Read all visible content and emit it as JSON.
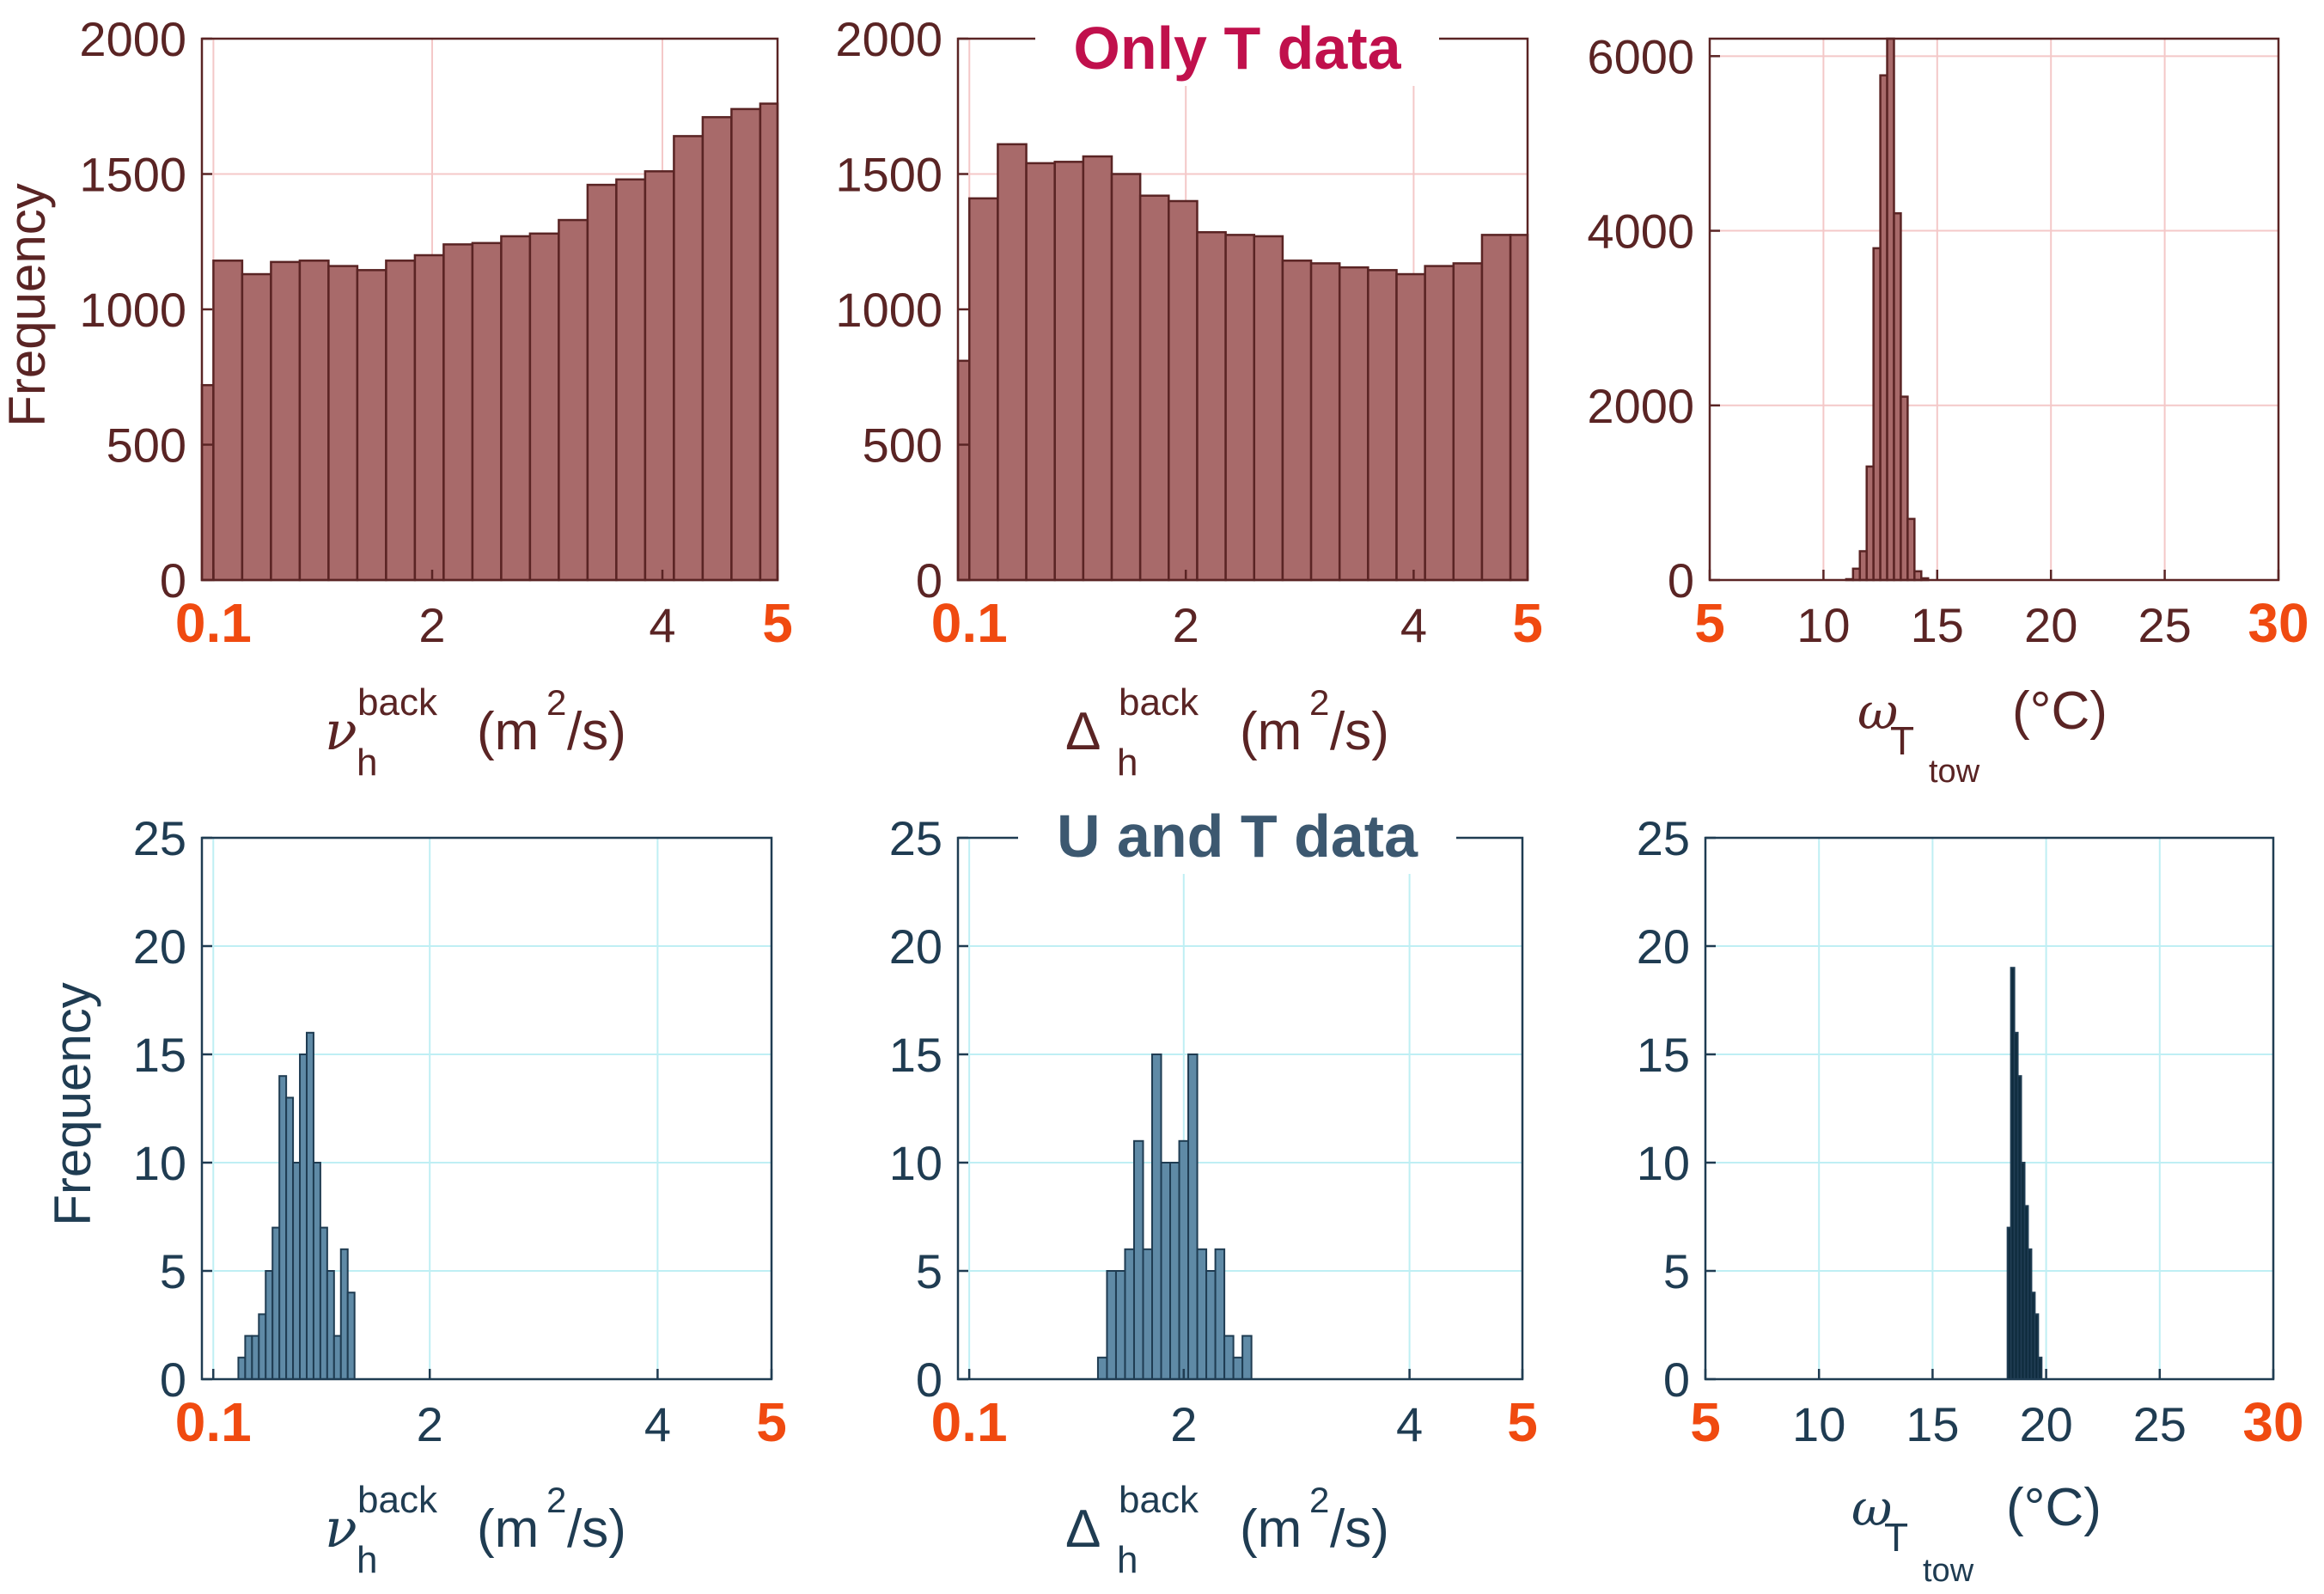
{
  "colors": {
    "top_bar": "#a86a6a",
    "top_dark": "#5a2424",
    "top_grid": "#f4c8c8",
    "top_title": "#c0104c",
    "bottom_bar": "#5f8aa6",
    "bottom_dark": "#1f3c52",
    "bottom_grid": "#bfeff4",
    "bottom_title": "#3c5870",
    "highlight_tick": "#f04a10",
    "omega_dark_bar": "#0d2a3c"
  },
  "titles": {
    "top": "Only T data",
    "bottom": "U and T data"
  },
  "ylabel": "Frequency",
  "xlabels": {
    "nu_main": "ν",
    "nu_sub": "h",
    "nu_sup": "back",
    "delta_main": "Δ",
    "delta_sub": "h",
    "delta_sup": "back",
    "unit_m2s_a": "(m",
    "unit_m2s_sup": "2",
    "unit_m2s_b": "/s)",
    "omega_main": "ω",
    "omega_sub": "T",
    "omega_subsub": "tow",
    "omega_unit": "(°C)"
  },
  "chart_data": [
    {
      "id": "top-nu",
      "type": "bar",
      "grid": true,
      "xlim": [
        0,
        5
      ],
      "ylim": [
        0,
        2000
      ],
      "yticks": [
        "0",
        "500",
        "1000",
        "1500",
        "2000"
      ],
      "xticks": [
        "0.1",
        "2",
        "4",
        "5"
      ],
      "bins": [
        [
          0,
          0.1,
          720
        ],
        [
          0.1,
          0.35,
          1180
        ],
        [
          0.35,
          0.6,
          1130
        ],
        [
          0.6,
          0.85,
          1175
        ],
        [
          0.85,
          1.1,
          1180
        ],
        [
          1.1,
          1.35,
          1160
        ],
        [
          1.35,
          1.6,
          1145
        ],
        [
          1.6,
          1.85,
          1180
        ],
        [
          1.85,
          2.1,
          1200
        ],
        [
          2.1,
          2.35,
          1240
        ],
        [
          2.35,
          2.6,
          1245
        ],
        [
          2.6,
          2.85,
          1270
        ],
        [
          2.85,
          3.1,
          1280
        ],
        [
          3.1,
          3.35,
          1330
        ],
        [
          3.35,
          3.6,
          1460
        ],
        [
          3.6,
          3.85,
          1480
        ],
        [
          3.85,
          4.1,
          1510
        ],
        [
          4.1,
          4.35,
          1640
        ],
        [
          4.35,
          4.6,
          1710
        ],
        [
          4.6,
          4.85,
          1740
        ],
        [
          4.85,
          5.0,
          1760
        ]
      ]
    },
    {
      "id": "top-delta",
      "type": "bar",
      "grid": true,
      "xlim": [
        0,
        5
      ],
      "ylim": [
        0,
        2000
      ],
      "yticks": [
        "0",
        "500",
        "1000",
        "1500",
        "2000"
      ],
      "xticks": [
        "0.1",
        "2",
        "4",
        "5"
      ],
      "bins": [
        [
          0,
          0.1,
          810
        ],
        [
          0.1,
          0.35,
          1410
        ],
        [
          0.35,
          0.6,
          1610
        ],
        [
          0.6,
          0.85,
          1540
        ],
        [
          0.85,
          1.1,
          1545
        ],
        [
          1.1,
          1.35,
          1565
        ],
        [
          1.35,
          1.6,
          1500
        ],
        [
          1.6,
          1.85,
          1420
        ],
        [
          1.85,
          2.1,
          1400
        ],
        [
          2.1,
          2.35,
          1285
        ],
        [
          2.35,
          2.6,
          1275
        ],
        [
          2.6,
          2.85,
          1270
        ],
        [
          2.85,
          3.1,
          1180
        ],
        [
          3.1,
          3.35,
          1170
        ],
        [
          3.35,
          3.6,
          1155
        ],
        [
          3.6,
          3.85,
          1145
        ],
        [
          3.85,
          4.1,
          1130
        ],
        [
          4.1,
          4.35,
          1160
        ],
        [
          4.35,
          4.6,
          1170
        ],
        [
          4.6,
          4.85,
          1275
        ],
        [
          4.85,
          5.0,
          1275
        ]
      ]
    },
    {
      "id": "top-omega",
      "type": "bar",
      "grid": true,
      "xlim": [
        5,
        30
      ],
      "ylim": [
        0,
        6200
      ],
      "yticks": [
        "0",
        "2000",
        "4000",
        "6000"
      ],
      "xticks": [
        "5",
        "10",
        "15",
        "20",
        "25",
        "30"
      ],
      "bins": [
        [
          11.0,
          11.3,
          10
        ],
        [
          11.3,
          11.6,
          130
        ],
        [
          11.6,
          11.9,
          330
        ],
        [
          11.9,
          12.2,
          1300
        ],
        [
          12.2,
          12.5,
          3800
        ],
        [
          12.5,
          12.8,
          5780
        ],
        [
          12.8,
          13.1,
          6200
        ],
        [
          13.1,
          13.4,
          4200
        ],
        [
          13.4,
          13.7,
          2100
        ],
        [
          13.7,
          14.0,
          700
        ],
        [
          14.0,
          14.3,
          100
        ],
        [
          14.3,
          14.6,
          20
        ]
      ]
    },
    {
      "id": "bottom-nu",
      "type": "bar",
      "grid": true,
      "xlim": [
        0,
        5
      ],
      "ylim": [
        0,
        25
      ],
      "yticks": [
        "0",
        "5",
        "10",
        "15",
        "20",
        "25"
      ],
      "xticks": [
        "0.1",
        "2",
        "4",
        "5"
      ],
      "bins": [
        [
          0.32,
          0.38,
          1
        ],
        [
          0.38,
          0.44,
          2
        ],
        [
          0.44,
          0.5,
          2
        ],
        [
          0.5,
          0.56,
          3
        ],
        [
          0.56,
          0.62,
          5
        ],
        [
          0.62,
          0.68,
          7
        ],
        [
          0.68,
          0.74,
          14
        ],
        [
          0.74,
          0.8,
          13
        ],
        [
          0.8,
          0.86,
          10
        ],
        [
          0.86,
          0.92,
          15
        ],
        [
          0.92,
          0.98,
          16
        ],
        [
          0.98,
          1.04,
          10
        ],
        [
          1.04,
          1.1,
          7
        ],
        [
          1.1,
          1.16,
          5
        ],
        [
          1.16,
          1.22,
          2
        ],
        [
          1.22,
          1.28,
          6
        ],
        [
          1.28,
          1.34,
          4
        ]
      ]
    },
    {
      "id": "bottom-delta",
      "type": "bar",
      "grid": true,
      "xlim": [
        0,
        5
      ],
      "ylim": [
        0,
        25
      ],
      "yticks": [
        "0",
        "5",
        "10",
        "15",
        "20",
        "25"
      ],
      "xticks": [
        "0.1",
        "2",
        "4",
        "5"
      ],
      "bins": [
        [
          1.24,
          1.32,
          1
        ],
        [
          1.32,
          1.4,
          5
        ],
        [
          1.4,
          1.48,
          5
        ],
        [
          1.48,
          1.56,
          6
        ],
        [
          1.56,
          1.64,
          11
        ],
        [
          1.64,
          1.72,
          6
        ],
        [
          1.72,
          1.8,
          15
        ],
        [
          1.8,
          1.88,
          10
        ],
        [
          1.88,
          1.96,
          10
        ],
        [
          1.96,
          2.04,
          11
        ],
        [
          2.04,
          2.12,
          15
        ],
        [
          2.12,
          2.2,
          6
        ],
        [
          2.2,
          2.28,
          5
        ],
        [
          2.28,
          2.36,
          6
        ],
        [
          2.36,
          2.44,
          2
        ],
        [
          2.44,
          2.52,
          1
        ],
        [
          2.52,
          2.6,
          2
        ]
      ]
    },
    {
      "id": "bottom-omega",
      "type": "bar",
      "grid": true,
      "xlim": [
        5,
        30
      ],
      "ylim": [
        0,
        25
      ],
      "yticks": [
        "0",
        "5",
        "10",
        "15",
        "20",
        "25"
      ],
      "xticks": [
        "5",
        "10",
        "15",
        "20",
        "25",
        "30"
      ],
      "bins": [
        [
          18.3,
          18.45,
          7
        ],
        [
          18.45,
          18.6,
          19
        ],
        [
          18.6,
          18.75,
          16
        ],
        [
          18.75,
          18.9,
          14
        ],
        [
          18.9,
          19.05,
          10
        ],
        [
          19.05,
          19.2,
          8
        ],
        [
          19.2,
          19.35,
          6
        ],
        [
          19.35,
          19.5,
          4
        ],
        [
          19.5,
          19.65,
          3
        ],
        [
          19.65,
          19.8,
          1
        ]
      ]
    }
  ]
}
